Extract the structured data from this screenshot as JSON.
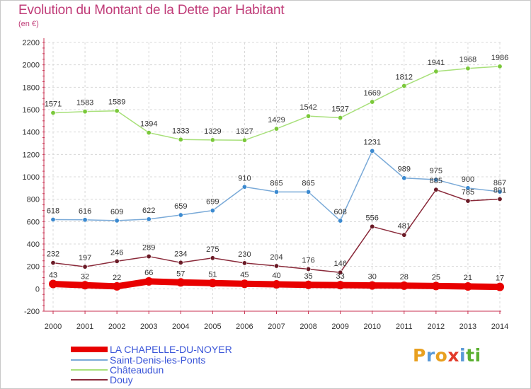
{
  "header": {
    "title": "Evolution du Montant de la Dette par Habitant",
    "subtitle": "(en €)"
  },
  "brand": {
    "letters": [
      "P",
      "r",
      "o",
      "x",
      "i",
      "t",
      "i"
    ],
    "colors": [
      "#e8a020",
      "#5a9ad8",
      "#e8a020",
      "#e23a2a",
      "#5a9ad8",
      "#5ab030",
      "#5ab030"
    ]
  },
  "chart_data": {
    "type": "line",
    "title": "Evolution du Montant de la Dette par Habitant",
    "ylabel": "(en €)",
    "xlabel": "",
    "x": [
      "2000",
      "2001",
      "2002",
      "2003",
      "2004",
      "2005",
      "2006",
      "2007",
      "2008",
      "2009",
      "2010",
      "2011",
      "2012",
      "2013",
      "2014"
    ],
    "ylim": [
      -200,
      2200
    ],
    "yticks": [
      -200,
      0,
      200,
      400,
      600,
      800,
      1000,
      1200,
      1400,
      1600,
      1800,
      2000,
      2200
    ],
    "grid": true,
    "legend_position": "bottom-left",
    "series": [
      {
        "name": "LA CHAPELLE-DU-NOYER",
        "color": "#e80000",
        "marker": "#e80000",
        "bold": true,
        "values": [
          43,
          32,
          22,
          66,
          57,
          51,
          45,
          40,
          35,
          33,
          30,
          28,
          25,
          21,
          17
        ],
        "labels": [
          "43",
          "32",
          "22",
          "66",
          "57",
          "51",
          "45",
          "40",
          "35",
          "33",
          "30",
          "28",
          "25",
          "21",
          "17"
        ]
      },
      {
        "name": "Saint-Denis-les-Ponts",
        "color": "#7aaad8",
        "marker": "#3c8ad0",
        "bold": false,
        "values": [
          618,
          616,
          609,
          622,
          659,
          699,
          910,
          865,
          865,
          608,
          1231,
          989,
          975,
          900,
          867
        ],
        "labels": [
          "618",
          "616",
          "609",
          "622",
          "659",
          "699",
          "910",
          "865",
          "865",
          "608",
          "1231",
          "989",
          "975",
          "900",
          "867"
        ]
      },
      {
        "name": "Châteaudun",
        "color": "#a8e07a",
        "marker": "#7ac83a",
        "bold": false,
        "values": [
          1571,
          1583,
          1589,
          1394,
          1333,
          1329,
          1327,
          1429,
          1542,
          1527,
          1669,
          1812,
          1941,
          1968,
          1986
        ],
        "labels": [
          "1571",
          "1583",
          "1589",
          "1394",
          "1333",
          "1329",
          "1327",
          "1429",
          "1542",
          "1527",
          "1669",
          "1812",
          "1941",
          "1968",
          "1986"
        ]
      },
      {
        "name": "Douy",
        "color": "#8a2a3a",
        "marker": "#6a1a26",
        "bold": false,
        "values": [
          232,
          197,
          246,
          289,
          234,
          275,
          230,
          204,
          176,
          146,
          556,
          481,
          885,
          785,
          801
        ],
        "labels": [
          "232",
          "197",
          "246",
          "289",
          "234",
          "275",
          "230",
          "204",
          "176",
          "146",
          "556",
          "481",
          "885",
          "785",
          "801"
        ]
      }
    ]
  }
}
